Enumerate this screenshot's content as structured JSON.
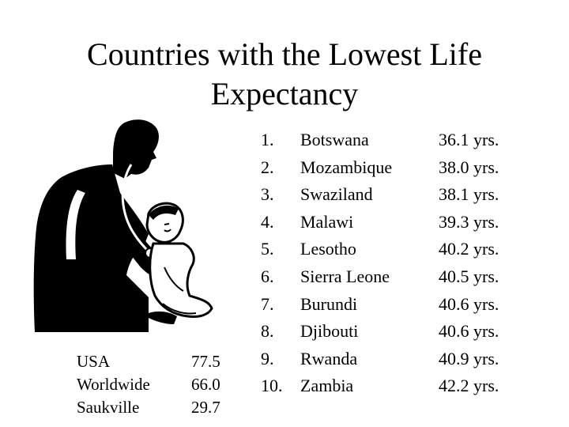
{
  "slide": {
    "title_line1": "Countries with the Lowest Life",
    "title_line2": "Expectancy",
    "image_icon": "doctor-examining-child-clipart"
  },
  "ranking": [
    {
      "rank": "1.",
      "country": "Botswana",
      "value": "36.1 yrs."
    },
    {
      "rank": "2.",
      "country": "Mozambique",
      "value": "38.0 yrs."
    },
    {
      "rank": "3.",
      "country": "Swaziland",
      "value": "38.1 yrs."
    },
    {
      "rank": "4.",
      "country": "Malawi",
      "value": "39.3 yrs."
    },
    {
      "rank": "5.",
      "country": "Lesotho",
      "value": "40.2 yrs."
    },
    {
      "rank": "6.",
      "country": "Sierra Leone",
      "value": "40.5 yrs."
    },
    {
      "rank": "7.",
      "country": "Burundi",
      "value": "40.6 yrs."
    },
    {
      "rank": "8.",
      "country": "Djibouti",
      "value": "40.6 yrs."
    },
    {
      "rank": "9.",
      "country": "Rwanda",
      "value": "40.9 yrs."
    },
    {
      "rank": "10.",
      "country": "Zambia",
      "value": "42.2 yrs."
    }
  ],
  "comparison": [
    {
      "label": "USA",
      "value": "77.5"
    },
    {
      "label": "Worldwide",
      "value": "66.0"
    },
    {
      "label": "Saukville",
      "value": "29.7"
    }
  ]
}
